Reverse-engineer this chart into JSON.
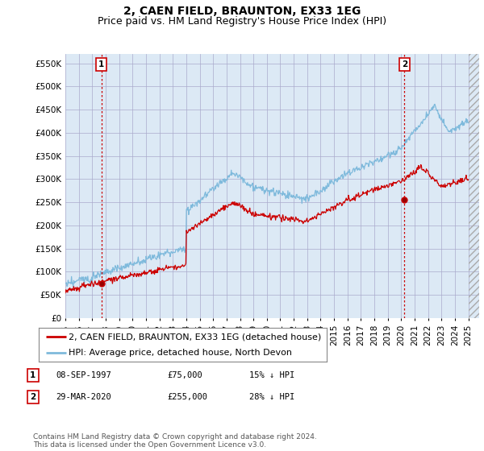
{
  "title": "2, CAEN FIELD, BRAUNTON, EX33 1EG",
  "subtitle": "Price paid vs. HM Land Registry's House Price Index (HPI)",
  "ytick_values": [
    0,
    50000,
    100000,
    150000,
    200000,
    250000,
    300000,
    350000,
    400000,
    450000,
    500000,
    550000
  ],
  "ylim": [
    0,
    570000
  ],
  "xlim_start": 1995.0,
  "xlim_end": 2025.8,
  "x_tick_years": [
    1995,
    1996,
    1997,
    1998,
    1999,
    2000,
    2001,
    2002,
    2003,
    2004,
    2005,
    2006,
    2007,
    2008,
    2009,
    2010,
    2011,
    2012,
    2013,
    2014,
    2015,
    2016,
    2017,
    2018,
    2019,
    2020,
    2021,
    2022,
    2023,
    2024,
    2025
  ],
  "hpi_color": "#7FBADC",
  "sale_color": "#CC0000",
  "vline_color": "#CC0000",
  "plot_bg_color": "#DCE9F5",
  "point1_x": 1997.69,
  "point1_y": 75000,
  "point2_x": 2020.24,
  "point2_y": 255000,
  "legend_entries": [
    "2, CAEN FIELD, BRAUNTON, EX33 1EG (detached house)",
    "HPI: Average price, detached house, North Devon"
  ],
  "table_rows": [
    {
      "num": "1",
      "date": "08-SEP-1997",
      "price": "£75,000",
      "hpi": "15% ↓ HPI"
    },
    {
      "num": "2",
      "date": "29-MAR-2020",
      "price": "£255,000",
      "hpi": "28% ↓ HPI"
    }
  ],
  "footer": "Contains HM Land Registry data © Crown copyright and database right 2024.\nThis data is licensed under the Open Government Licence v3.0.",
  "bg_color": "#ffffff",
  "grid_color": "#aaaacc",
  "title_fontsize": 10,
  "subtitle_fontsize": 9,
  "tick_fontsize": 7.5,
  "legend_fontsize": 8,
  "footer_fontsize": 6.5
}
